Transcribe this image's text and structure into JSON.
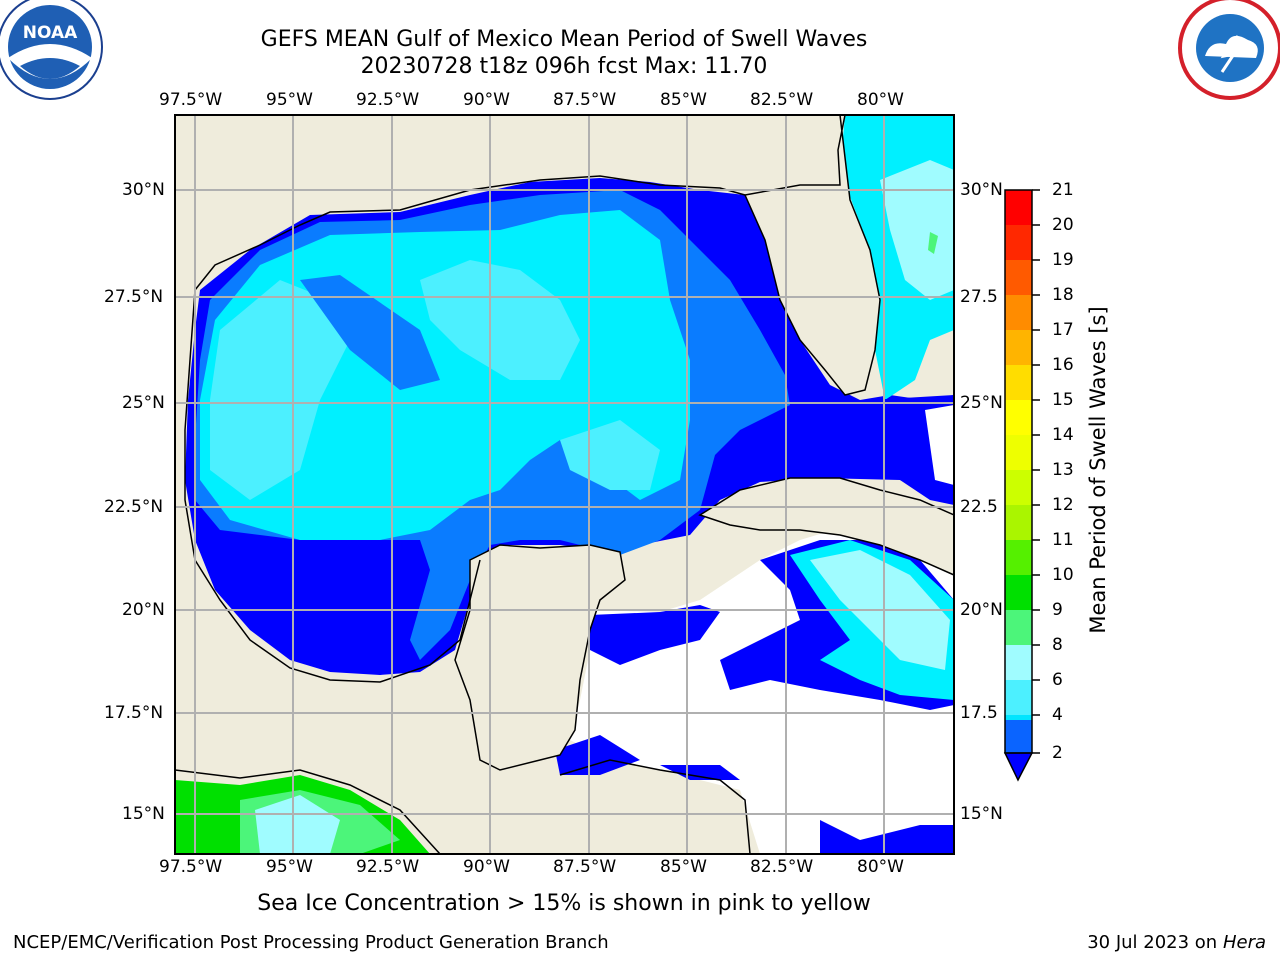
{
  "header": {
    "title_line1": "GEFS MEAN Gulf of Mexico Mean Period of Swell Waves",
    "title_line2": "20230728 t18z 096h fcst   Max: 11.70"
  },
  "logos": {
    "left": "noara-logo",
    "left_text": "NOAA",
    "right": "nws-logo"
  },
  "map": {
    "lon_ticks": [
      "97.5°W",
      "95°W",
      "92.5°W",
      "90°W",
      "87.5°W",
      "85°W",
      "82.5°W",
      "80°W"
    ],
    "lat_ticks_left": [
      "30°N",
      "27.5°N",
      "25°N",
      "22.5°N",
      "20°N",
      "17.5°N",
      "15°N"
    ],
    "lat_ticks_right": [
      "30°N",
      "27.5",
      "25°N",
      "22.5",
      "20°N",
      "17.5",
      "15°N"
    ],
    "colors": {
      "land": "#efecdc",
      "ocean_white": "#ffffff",
      "grid": "#b0b0b0"
    }
  },
  "colorbar": {
    "title": "Mean Period of Swell Waves [s]",
    "levels": [
      "2",
      "4",
      "6",
      "8",
      "9",
      "10",
      "11",
      "12",
      "13",
      "14",
      "15",
      "16",
      "17",
      "18",
      "19",
      "20",
      "21"
    ],
    "colors": [
      "#0a64ff",
      "#00e5ff",
      "#4cf0ff",
      "#a0fcff",
      "#4cf57a",
      "#00e000",
      "#55f000",
      "#aaf500",
      "#ccff00",
      "#eeff00",
      "#ffff00",
      "#ffdd00",
      "#ffb400",
      "#ff8c00",
      "#ff5a00",
      "#ff2800",
      "#ff0000"
    ],
    "under_color": "#0000ff"
  },
  "note": "Sea Ice Concentration > 15% is shown in pink to yellow",
  "footer": {
    "left": "NCEP/EMC/Verification Post Processing Product Generation Branch",
    "right_prefix": "30 Jul 2023 on ",
    "right_host": "Hera"
  }
}
